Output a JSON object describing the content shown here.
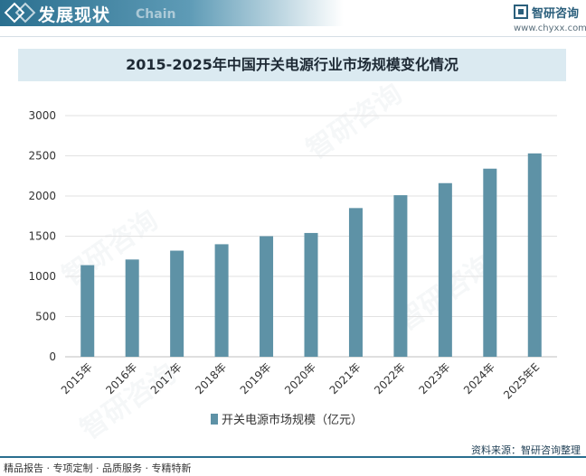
{
  "header": {
    "section_title": "发展现状",
    "section_subtitle": "Chain",
    "brand_name": "智研咨询",
    "brand_url": "www.chyxx.com"
  },
  "chart_data": {
    "type": "bar",
    "title": "2015-2025年中国开关电源行业市场规模变化情况",
    "categories": [
      "2015年",
      "2016年",
      "2017年",
      "2018年",
      "2019年",
      "2020年",
      "2021年",
      "2022年",
      "2023年",
      "2024年",
      "2025年E"
    ],
    "series": [
      {
        "name": "开关电源市场规模（亿元）",
        "values": [
          1140,
          1210,
          1320,
          1400,
          1500,
          1540,
          1850,
          2010,
          2160,
          2340,
          2530
        ]
      }
    ],
    "ylim": [
      0,
      3000
    ],
    "yticks": [
      0,
      500,
      1000,
      1500,
      2000,
      2500,
      3000
    ],
    "grid": true,
    "legend": "bottom",
    "colors": {
      "bar": "#5e92a6",
      "grid": "#e2e2e2",
      "axis": "#bfbfbf"
    }
  },
  "footer": {
    "tags": "精品报告 · 专项定制 · 品质服务 · 专精特新",
    "source": "资料来源：智研咨询整理"
  },
  "watermark": "智研咨询"
}
